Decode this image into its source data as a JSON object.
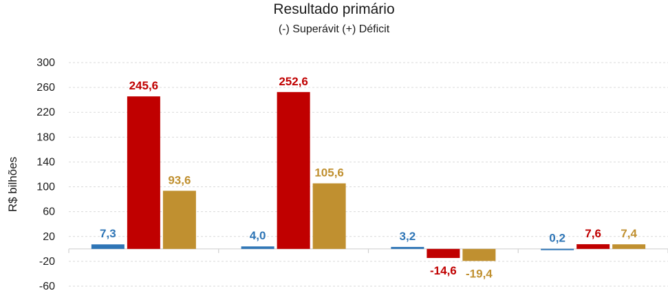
{
  "chart_data": {
    "type": "bar",
    "title": "Resultado primário",
    "subtitle": "(-) Superávit  (+) Déficit",
    "ylabel": "R$ bilhões",
    "xlabel": "",
    "categories": [
      "",
      "",
      "",
      ""
    ],
    "ylim": [
      -60,
      300
    ],
    "yticks": [
      300,
      260,
      220,
      180,
      140,
      100,
      60,
      20,
      -20,
      -60
    ],
    "grid": true,
    "legend": "none",
    "series": [
      {
        "values": [
          7.3,
          4.0,
          3.2,
          0.2
        ],
        "labels": [
          "7,3",
          "4,0",
          "3,2",
          "0,2"
        ],
        "color": "#2e75b6"
      },
      {
        "values": [
          245.6,
          252.6,
          -14.6,
          7.6
        ],
        "labels": [
          "245,6",
          "252,6",
          "-14,6",
          "7,6"
        ],
        "color": "#c00000"
      },
      {
        "values": [
          93.6,
          105.6,
          -19.4,
          7.4
        ],
        "labels": [
          "93,6",
          "105,6",
          "-19,4",
          "7,4"
        ],
        "color": "#c09030"
      }
    ]
  }
}
